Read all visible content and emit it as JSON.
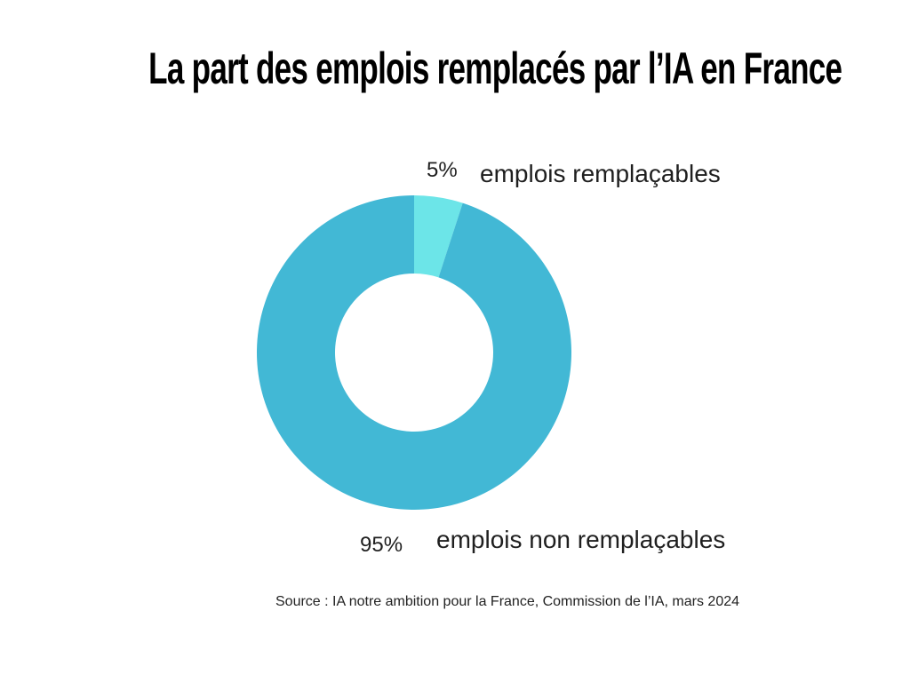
{
  "title": "La part des emplois remplacés par l’IA en France",
  "chart_data": {
    "type": "pie",
    "variant": "donut",
    "title": "La part des emplois remplacés par l’IA en France",
    "slices": [
      {
        "label": "emplois remplaçables",
        "value": 5,
        "value_label": "5%",
        "color": "#6ce5e8"
      },
      {
        "label": "emplois non remplaçables",
        "value": 95,
        "value_label": "95%",
        "color": "#42b8d5"
      }
    ],
    "start_angle": "top",
    "direction": "clockwise"
  },
  "source": "Source : IA notre ambition pour la France, Commission de l’IA, mars 2024"
}
